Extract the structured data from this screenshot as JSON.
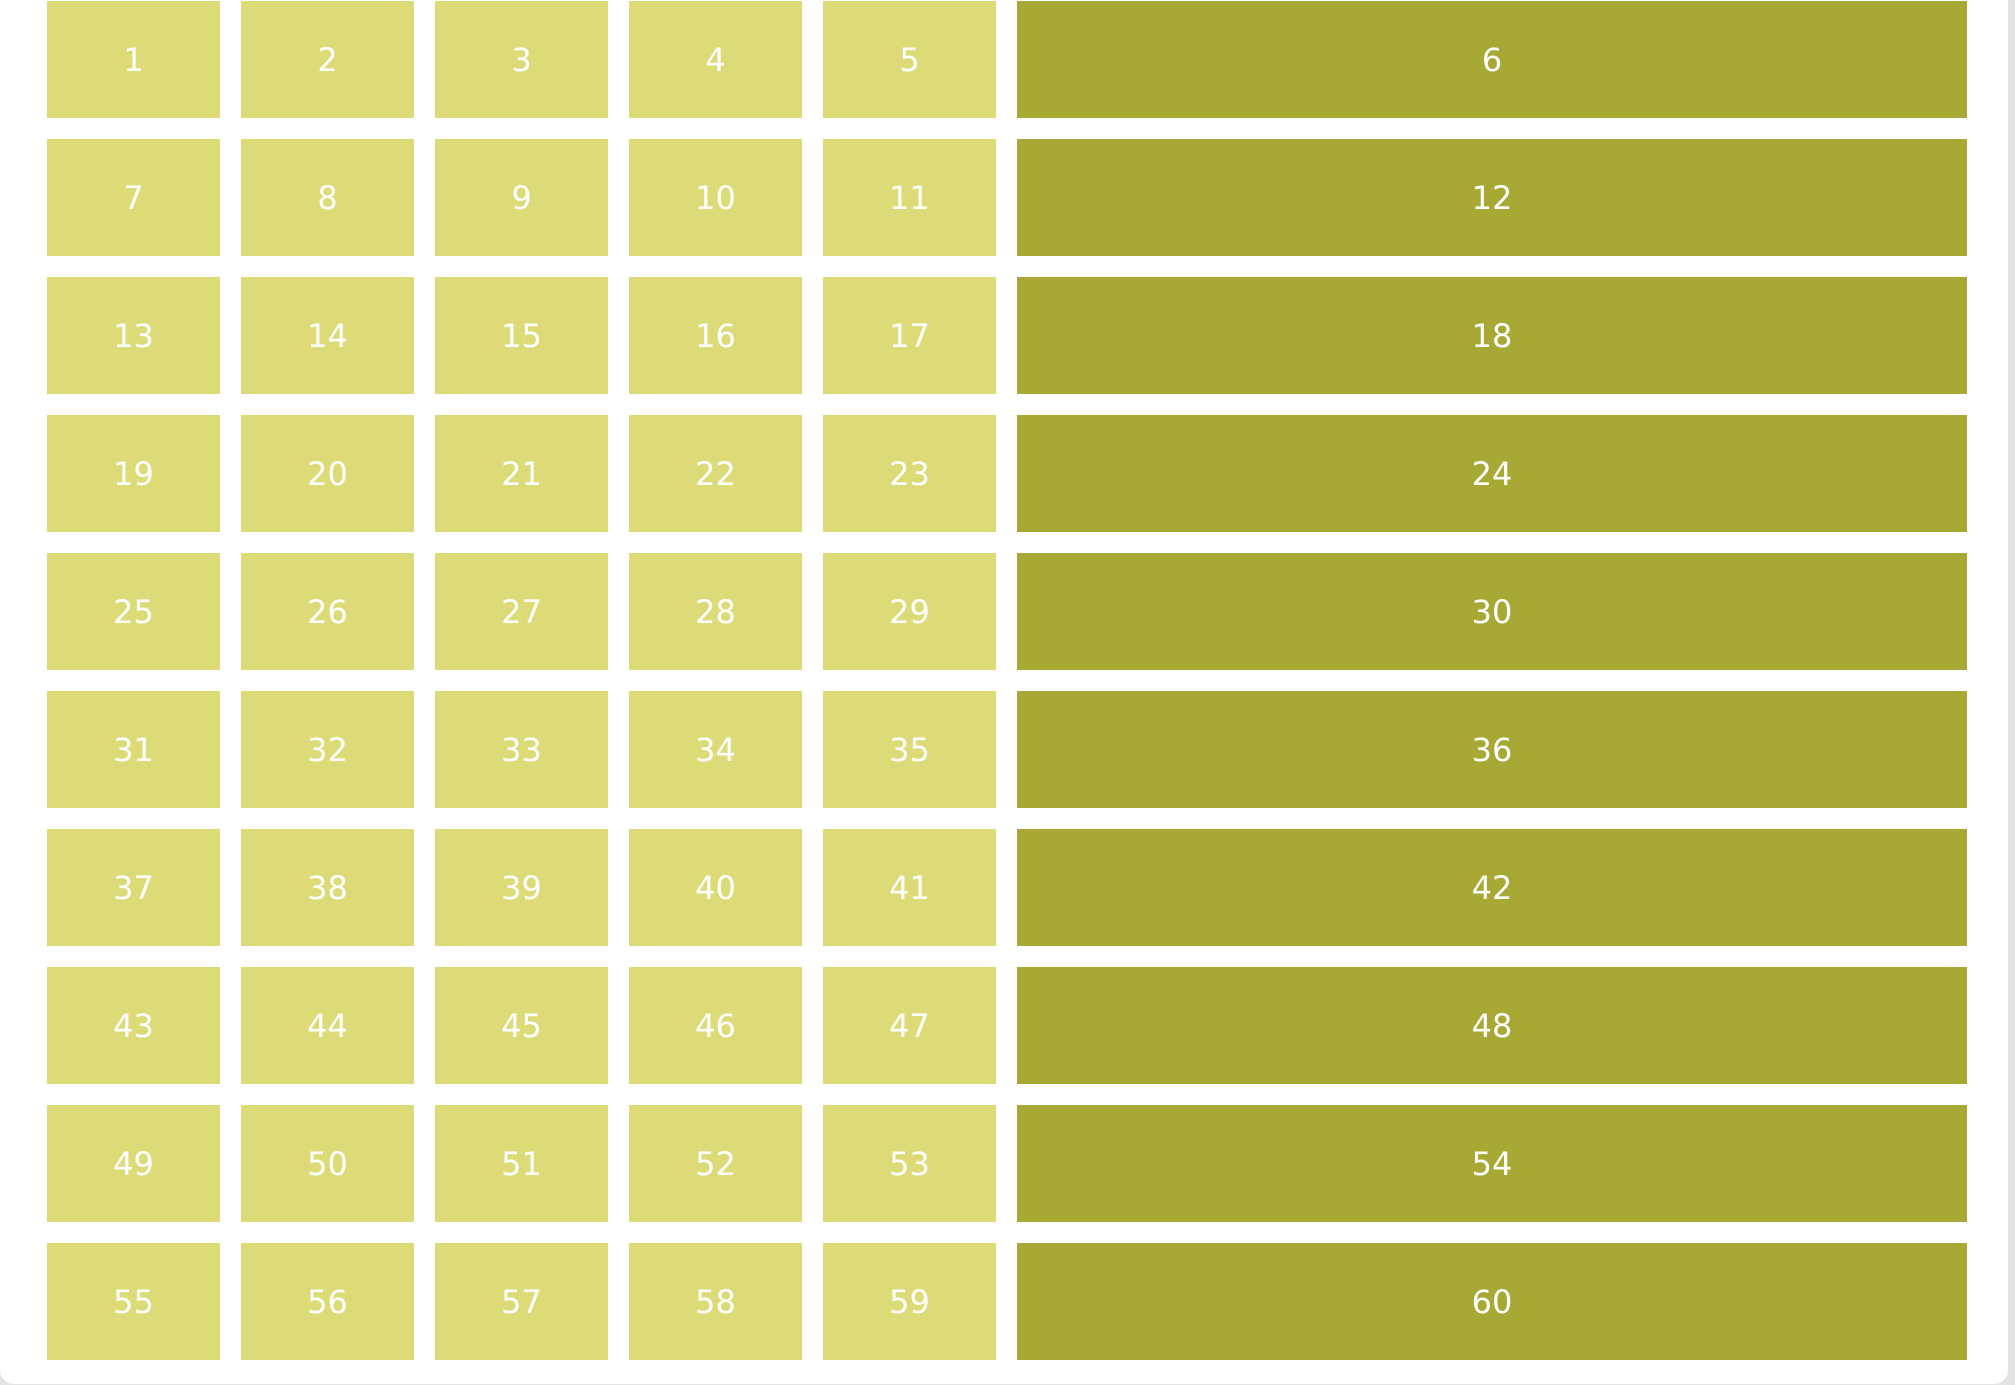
{
  "colors": {
    "small_cell": "#dcdb78",
    "wide_cell": "#a8a835",
    "text": "#ffffff",
    "background": "#ffffff"
  },
  "grid": {
    "rows": [
      [
        "1",
        "2",
        "3",
        "4",
        "5",
        "6"
      ],
      [
        "7",
        "8",
        "9",
        "10",
        "11",
        "12"
      ],
      [
        "13",
        "14",
        "15",
        "16",
        "17",
        "18"
      ],
      [
        "19",
        "20",
        "21",
        "22",
        "23",
        "24"
      ],
      [
        "25",
        "26",
        "27",
        "28",
        "29",
        "30"
      ],
      [
        "31",
        "32",
        "33",
        "34",
        "35",
        "36"
      ],
      [
        "37",
        "38",
        "39",
        "40",
        "41",
        "42"
      ],
      [
        "43",
        "44",
        "45",
        "46",
        "47",
        "48"
      ],
      [
        "49",
        "50",
        "51",
        "52",
        "53",
        "54"
      ],
      [
        "55",
        "56",
        "57",
        "58",
        "59",
        "60"
      ]
    ]
  }
}
